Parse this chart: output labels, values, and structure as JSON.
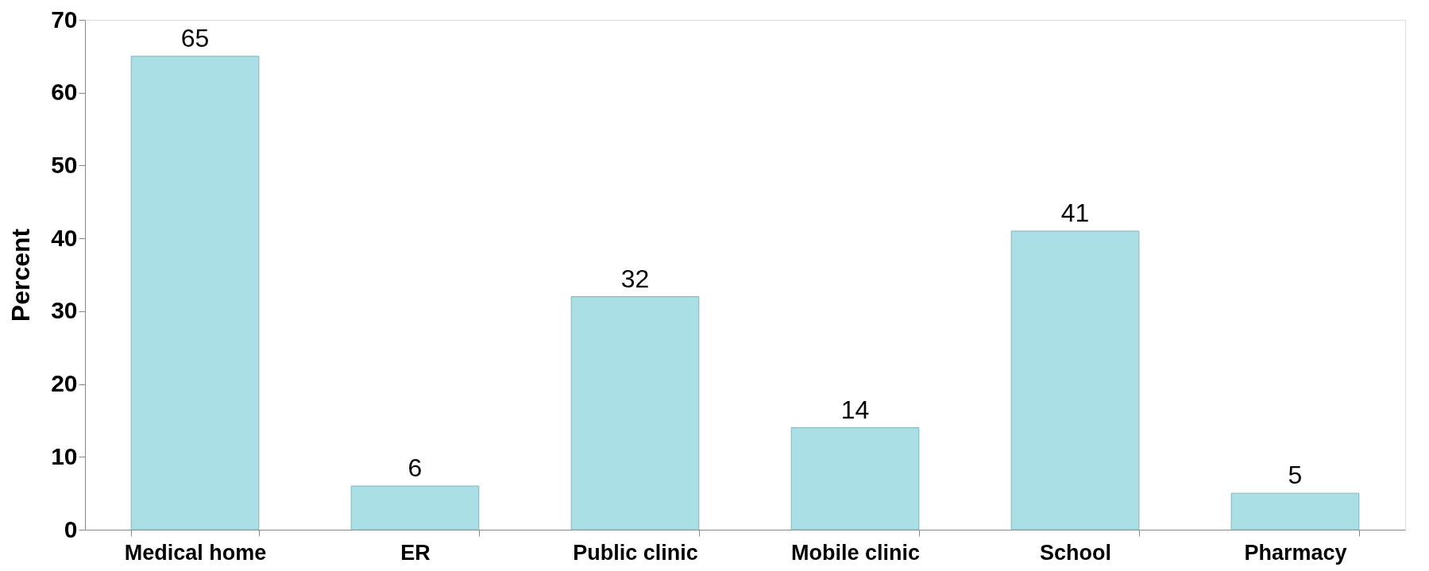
{
  "chart_data": {
    "type": "bar",
    "ylabel": "Percent",
    "categories": [
      "Medical home",
      "ER",
      "Public clinic",
      "Mobile clinic",
      "School",
      "Pharmacy"
    ],
    "values": [
      65,
      6,
      32,
      14,
      41,
      5
    ],
    "color": "#a9dfe5",
    "ylim": [
      0,
      70
    ],
    "yticks": [
      0,
      10,
      20,
      30,
      40,
      50,
      60,
      70
    ],
    "grid": false,
    "data_labels": true
  }
}
